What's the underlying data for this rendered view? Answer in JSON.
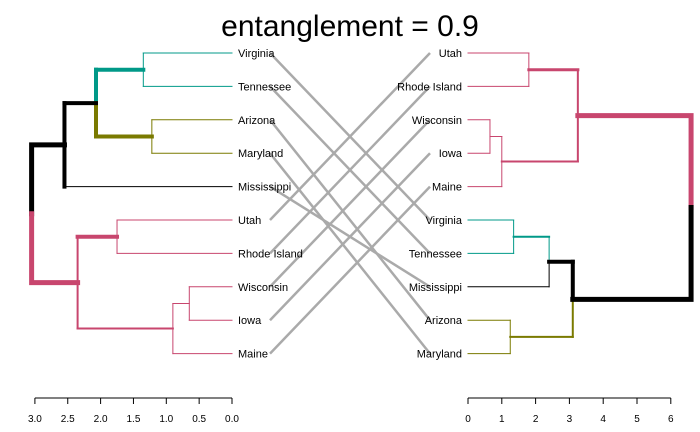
{
  "title": "entanglement = 0.9",
  "colors": {
    "teal": "#009988",
    "olive": "#7a7a00",
    "pink": "#c8466e",
    "black": "#000000",
    "connector": "#aaaaaa"
  },
  "left_tree": {
    "labels": [
      "Virginia",
      "Tennessee",
      "Arizona",
      "Maryland",
      "Mississippi",
      "Utah",
      "Rhode Island",
      "Wisconsin",
      "Iowa",
      "Maine"
    ],
    "axis_ticks": [
      "3.0",
      "2.5",
      "2.0",
      "1.5",
      "1.0",
      "0.5",
      "0.0"
    ]
  },
  "right_tree": {
    "labels": [
      "Utah",
      "Rhode Island",
      "Wisconsin",
      "Iowa",
      "Maine",
      "Virginia",
      "Tennessee",
      "Mississippi",
      "Arizona",
      "Maryland"
    ],
    "axis_ticks": [
      "0",
      "1",
      "2",
      "3",
      "4",
      "5",
      "6"
    ]
  },
  "connections": [
    [
      0,
      5
    ],
    [
      1,
      6
    ],
    [
      2,
      8
    ],
    [
      3,
      9
    ],
    [
      4,
      7
    ],
    [
      5,
      0
    ],
    [
      6,
      1
    ],
    [
      7,
      2
    ],
    [
      8,
      3
    ],
    [
      9,
      4
    ]
  ]
}
